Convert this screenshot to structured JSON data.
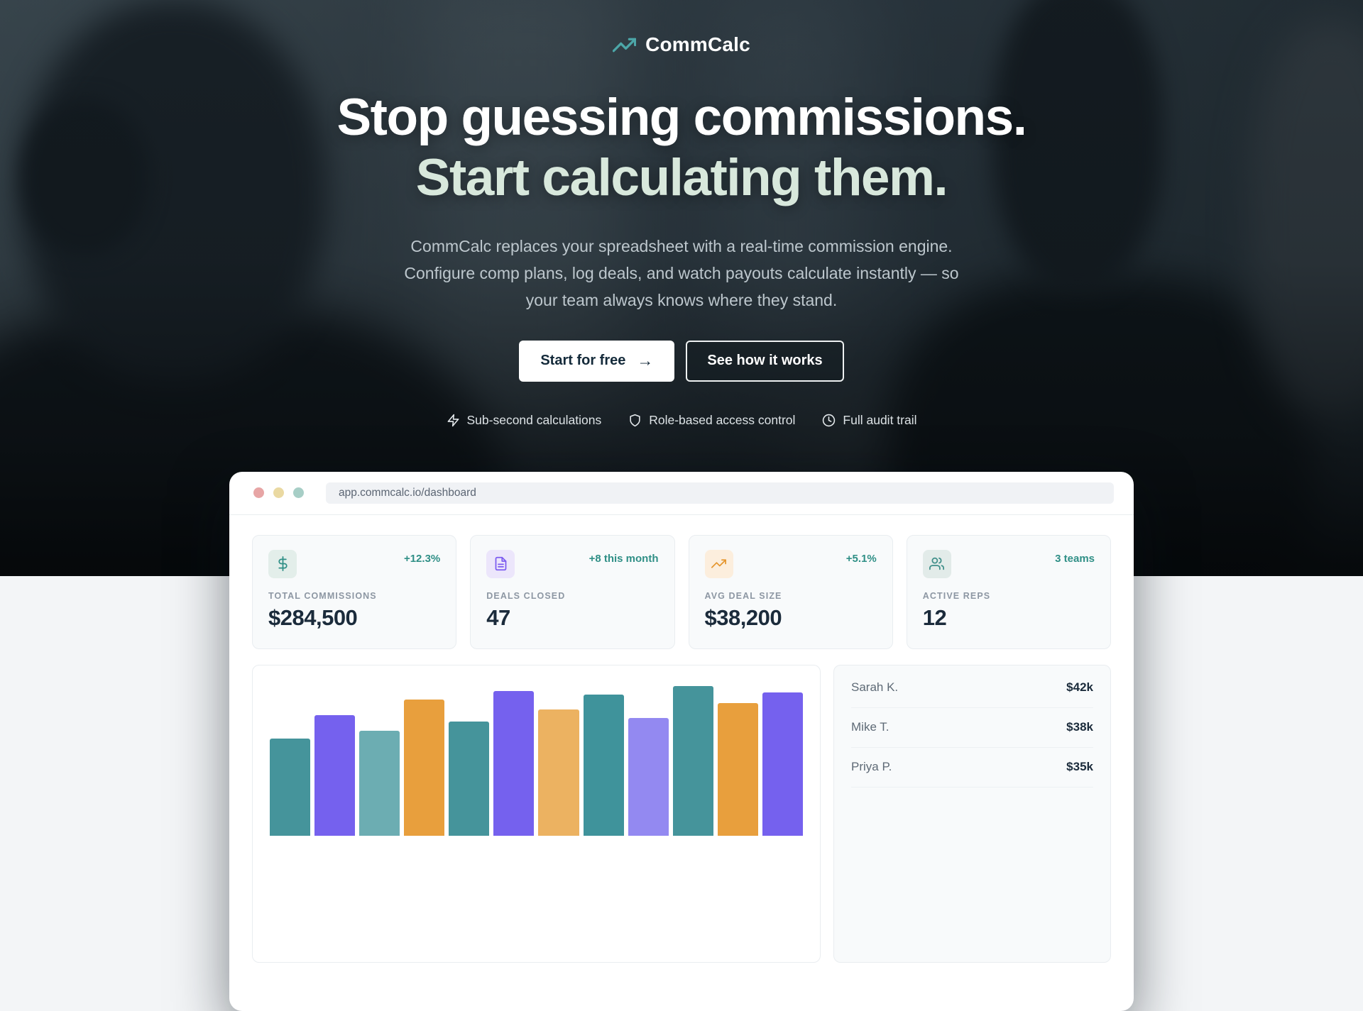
{
  "colors": {
    "logo_teal": "#4ca6a8",
    "headline_white": "#ffffff",
    "headline_mint": "#d8e8dc",
    "badge_teal": "#2f8f86",
    "value_navy": "#1b2b3b",
    "bar_teal": "#45949b",
    "bar_purple": "#7561ee",
    "bar_light_teal": "#6cadb2",
    "bar_orange": "#e89f3d",
    "bar_light_orange": "#ecb261",
    "bar_dark_teal": "#3f939b",
    "bar_light_purple": "#9389f1",
    "traffic_red": "#e7a5a5",
    "traffic_yellow": "#ead9a2",
    "traffic_green": "#a7cec6"
  },
  "brand": {
    "name": "CommCalc",
    "logo_icon": "trending-up-icon"
  },
  "hero": {
    "headline_line1": "Stop guessing commissions.",
    "headline_line2": "Start calculating them.",
    "subtitle_lines": [
      "CommCalc replaces your spreadsheet with a real-time commission engine.",
      "Configure comp plans, log deals, and watch payouts calculate instantly — so",
      "your team always knows where they stand."
    ],
    "cta_primary": "Start for free",
    "cta_primary_arrow": "→",
    "cta_secondary": "See how it works",
    "features": [
      {
        "icon": "zap-icon",
        "label": "Sub-second calculations"
      },
      {
        "icon": "shield-icon",
        "label": "Role-based access control"
      },
      {
        "icon": "clock-icon",
        "label": "Full audit trail"
      }
    ]
  },
  "browser": {
    "url": "app.commcalc.io/dashboard"
  },
  "stats": [
    {
      "icon": "dollar-icon",
      "icon_color": "#2f8f86",
      "tile_bg": "#e3eeea",
      "badge": "+12.3%",
      "label": "TOTAL COMMISSIONS",
      "value": "$284,500"
    },
    {
      "icon": "file-text-icon",
      "icon_color": "#7c5cf0",
      "tile_bg": "#ece6fb",
      "badge": "+8 this month",
      "label": "DEALS CLOSED",
      "value": "47"
    },
    {
      "icon": "trending-up-icon",
      "icon_color": "#e5962e",
      "tile_bg": "#fceedd",
      "badge": "+5.1%",
      "label": "AVG DEAL SIZE",
      "value": "$38,200"
    },
    {
      "icon": "users-icon",
      "icon_color": "#3f8f8a",
      "tile_bg": "#e2ebe9",
      "badge": "3 teams",
      "label": "ACTIVE REPS",
      "value": "12"
    }
  ],
  "chart_data": {
    "type": "bar",
    "title": "",
    "categories": [],
    "values": [
      137,
      170,
      148,
      192,
      161,
      204,
      178,
      199,
      166,
      211,
      187,
      202
    ],
    "colors": [
      "#45949b",
      "#7561ee",
      "#6cadb2",
      "#e89f3d",
      "#45949b",
      "#7561ee",
      "#ecb261",
      "#3f939b",
      "#9389f1",
      "#45949b",
      "#e89f3d",
      "#7561ee"
    ],
    "note": "No axis, tick or data labels are visible; values are estimated relative bar heights in px. Chart is cropped by the bottom edge of the viewport.",
    "grid": false,
    "legend": false
  },
  "leaderboard": {
    "rows": [
      {
        "name": "Sarah K.",
        "value": "$42k"
      },
      {
        "name": "Mike T.",
        "value": "$38k"
      },
      {
        "name": "Priya P.",
        "value": "$35k"
      }
    ]
  }
}
